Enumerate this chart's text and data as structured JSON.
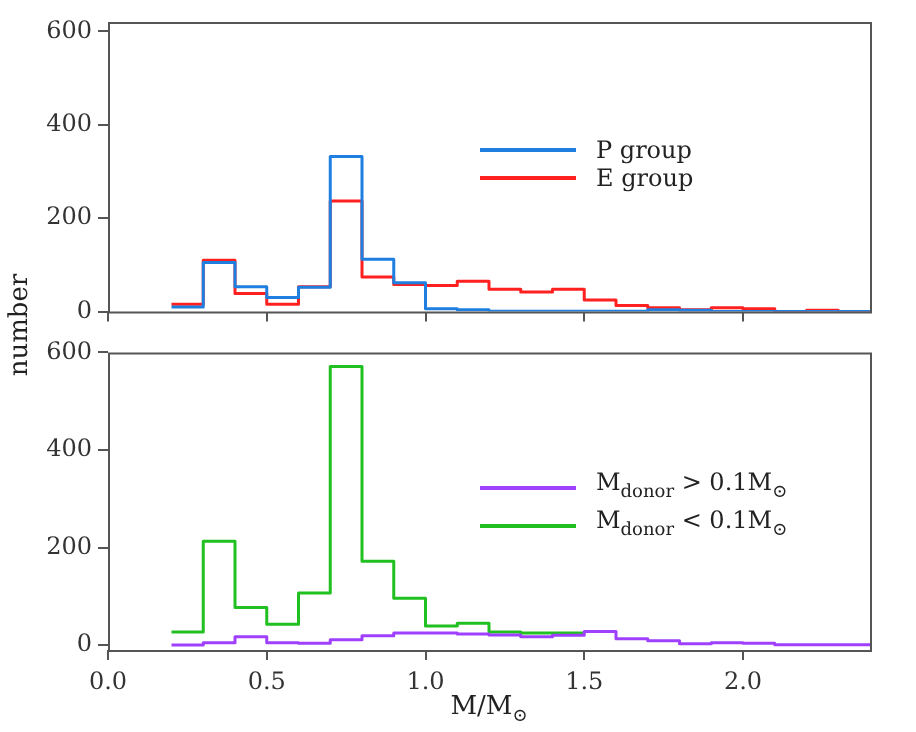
{
  "chart_data": [
    {
      "type": "histogram",
      "ylabel": "number",
      "bins": [
        0.2,
        0.3,
        0.4,
        0.5,
        0.6,
        0.7,
        0.8,
        0.9,
        1.0,
        1.1,
        1.2,
        1.3,
        1.4,
        1.5,
        1.6,
        1.7,
        1.8,
        1.9,
        2.0,
        2.1,
        2.2,
        2.3,
        2.4
      ],
      "series": [
        {
          "name": "P group",
          "color": "#1f7fe0",
          "values": [
            10,
            105,
            53,
            30,
            52,
            332,
            112,
            62,
            6,
            4,
            1,
            1,
            1,
            1,
            1,
            4,
            3,
            0,
            0,
            0,
            0,
            0
          ]
        },
        {
          "name": "E group",
          "color": "#ff2020",
          "values": [
            16,
            110,
            39,
            16,
            53,
            237,
            74,
            58,
            56,
            65,
            48,
            42,
            48,
            25,
            13,
            8,
            4,
            8,
            6,
            0,
            3,
            0
          ]
        }
      ],
      "xlim": [
        0,
        2.4
      ],
      "xticks": [
        {
          "value": 0,
          "label": null
        },
        {
          "value": 0.5,
          "label": null
        },
        {
          "value": 1,
          "label": null
        },
        {
          "value": 1.5,
          "label": null
        },
        {
          "value": 2,
          "label": null
        }
      ],
      "ylim": [
        0,
        620
      ],
      "yticks": [
        0,
        200,
        400,
        600
      ],
      "tick_labels": "y",
      "legend": "right"
    },
    {
      "type": "histogram",
      "xlabel": "M/M$_{⊙}$",
      "bins": [
        0.2,
        0.3,
        0.4,
        0.5,
        0.6,
        0.7,
        0.8,
        0.9,
        1.0,
        1.1,
        1.2,
        1.3,
        1.4,
        1.5,
        1.6,
        1.7,
        1.8,
        1.9,
        2.0,
        2.1,
        2.2,
        2.3,
        2.4
      ],
      "series": [
        {
          "name": "M$_{donor}$ > 0.1M$_{⊙}$",
          "color": "#a040ff",
          "values": [
            0,
            5,
            17,
            5,
            4,
            11,
            19,
            25,
            25,
            23,
            21,
            17,
            20,
            28,
            13,
            9,
            3,
            5,
            4,
            1,
            1,
            1
          ]
        },
        {
          "name": "M$_{donor}$ < 0.1M$_{⊙}$",
          "color": "#20c020",
          "bins": [
            0.2,
            0.3,
            0.4,
            0.5,
            0.6,
            0.7,
            0.8,
            0.9,
            1.0,
            1.1,
            1.2,
            1.3,
            1.4,
            1.5
          ],
          "values": [
            27,
            213,
            77,
            43,
            107,
            571,
            172,
            96,
            39,
            45,
            27,
            25,
            25
          ]
        }
      ],
      "xlim": [
        0,
        2.4
      ],
      "xticks": [
        {
          "value": 0,
          "label": "0.0"
        },
        {
          "value": 0.5,
          "label": "0.5"
        },
        {
          "value": 1,
          "label": "1.0"
        },
        {
          "value": 1.5,
          "label": "1.5"
        },
        {
          "value": 2,
          "label": "2.0"
        }
      ],
      "ylim": [
        -10,
        600
      ],
      "yticks": [
        0,
        200,
        400,
        600
      ],
      "legend": "right"
    }
  ]
}
